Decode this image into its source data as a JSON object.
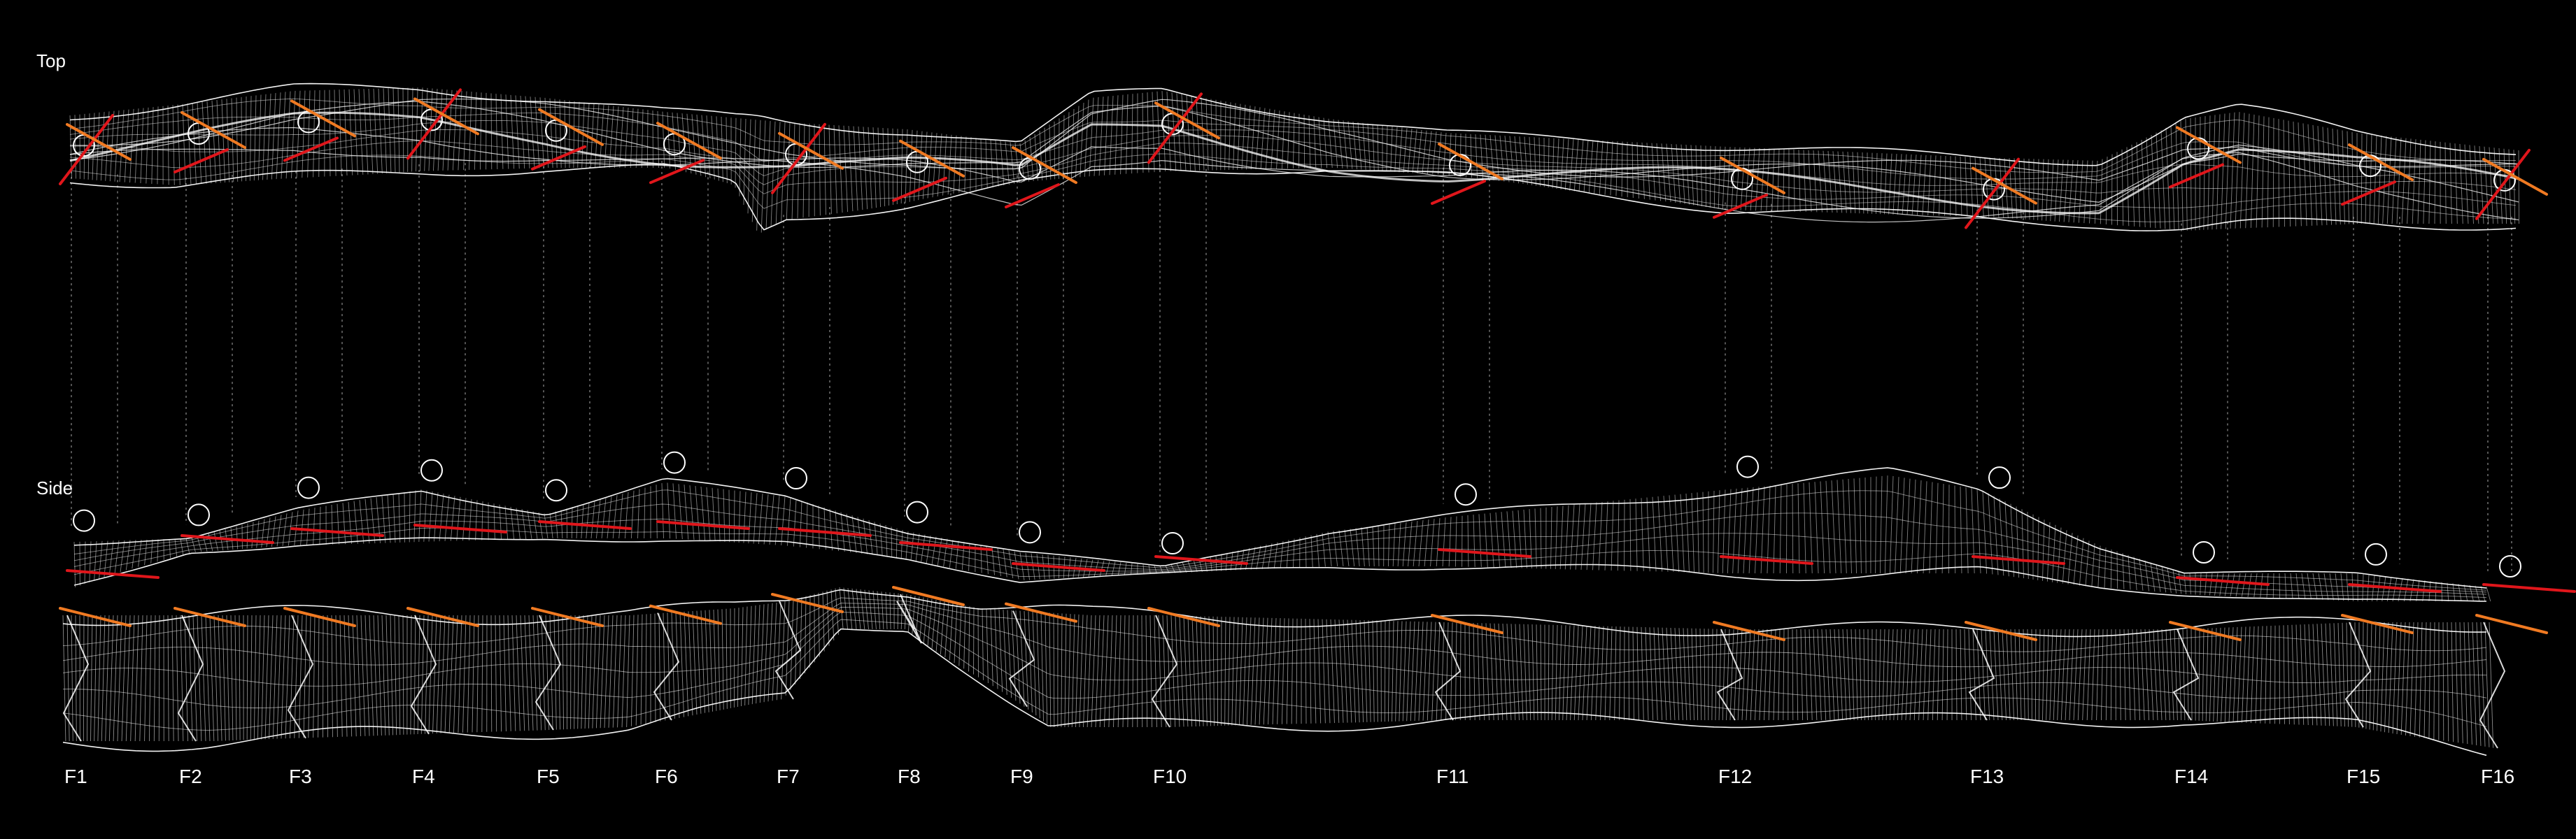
{
  "views": {
    "top_label": "Top",
    "side_label": "Side"
  },
  "frames": [
    {
      "label": "F1"
    },
    {
      "label": "F2"
    },
    {
      "label": "F3"
    },
    {
      "label": "F4"
    },
    {
      "label": "F5"
    },
    {
      "label": "F6"
    },
    {
      "label": "F7"
    },
    {
      "label": "F8"
    },
    {
      "label": "F9"
    },
    {
      "label": "F10"
    },
    {
      "label": "F11"
    },
    {
      "label": "F12"
    },
    {
      "label": "F13"
    },
    {
      "label": "F14"
    },
    {
      "label": "F15"
    },
    {
      "label": "F16"
    }
  ],
  "colors": {
    "background": "#000000",
    "mesh": "#ffffff",
    "red_marker": "#e0161b",
    "orange_marker": "#f07a22",
    "guide": "#9a9a9a"
  }
}
